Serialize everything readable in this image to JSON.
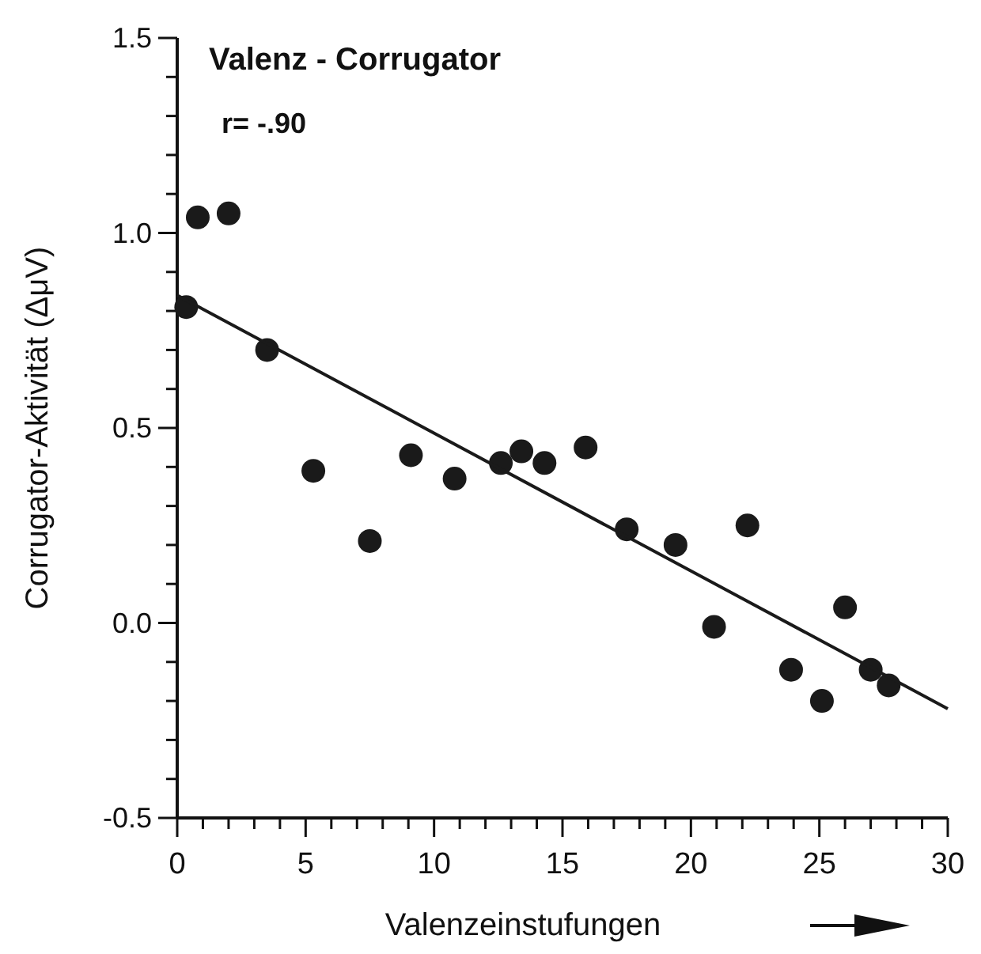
{
  "chart_data": {
    "type": "scatter",
    "title": "Valenz - Corrugator",
    "xlabel": "Valenzeinstufungen",
    "ylabel": "Corrugator-Aktivität (ΔμV)",
    "annotations": [
      "r= -.90"
    ],
    "xlim": [
      0,
      30
    ],
    "ylim": [
      -0.5,
      1.5
    ],
    "xticks": [
      0,
      {
        "value": 1,
        "label": null
      },
      {
        "value": 2,
        "label": null
      },
      {
        "value": 3,
        "label": null
      },
      {
        "value": 4,
        "label": null
      },
      5,
      {
        "value": 6,
        "label": null
      },
      {
        "value": 7,
        "label": null
      },
      {
        "value": 8,
        "label": null
      },
      {
        "value": 9,
        "label": null
      },
      10,
      {
        "value": 11,
        "label": null
      },
      {
        "value": 12,
        "label": null
      },
      {
        "value": 13,
        "label": null
      },
      {
        "value": 14,
        "label": null
      },
      15,
      {
        "value": 16,
        "label": null
      },
      {
        "value": 17,
        "label": null
      },
      {
        "value": 18,
        "label": null
      },
      {
        "value": 19,
        "label": null
      },
      20,
      {
        "value": 21,
        "label": null
      },
      {
        "value": 22,
        "label": null
      },
      {
        "value": 23,
        "label": null
      },
      {
        "value": 24,
        "label": null
      },
      25,
      {
        "value": 26,
        "label": null
      },
      {
        "value": 27,
        "label": null
      },
      {
        "value": 28,
        "label": null
      },
      {
        "value": 29,
        "label": null
      },
      30
    ],
    "yticks": [
      -0.5,
      {
        "value": -0.4,
        "label": null
      },
      {
        "value": -0.3,
        "label": null
      },
      {
        "value": -0.2,
        "label": null
      },
      {
        "value": -0.1,
        "label": null
      },
      {
        "value": 0,
        "label": "0.0"
      },
      {
        "value": 0.1,
        "label": null
      },
      {
        "value": 0.2,
        "label": null
      },
      {
        "value": 0.3,
        "label": null
      },
      {
        "value": 0.4,
        "label": null
      },
      0.5,
      {
        "value": 0.6,
        "label": null
      },
      {
        "value": 0.7,
        "label": null
      },
      {
        "value": 0.8,
        "label": null
      },
      {
        "value": 0.9,
        "label": null
      },
      {
        "value": 1,
        "label": "1.0"
      },
      {
        "value": 1.1,
        "label": null
      },
      {
        "value": 1.2,
        "label": null
      },
      {
        "value": 1.3,
        "label": null
      },
      {
        "value": 1.4,
        "label": null
      },
      1.5
    ],
    "grid": false,
    "series": [
      {
        "type": "scatter",
        "color": "#1a1a1a",
        "marker": "circle",
        "x": [
          0.35,
          0.8,
          2.0,
          3.5,
          5.3,
          7.5,
          9.1,
          10.8,
          12.6,
          13.4,
          14.3,
          15.9,
          17.5,
          19.4,
          20.9,
          22.2,
          23.9,
          25.1,
          26.0,
          27.0,
          27.7
        ],
        "values": [
          0.81,
          1.04,
          1.05,
          0.7,
          0.39,
          0.21,
          0.43,
          0.37,
          0.41,
          0.44,
          0.41,
          0.45,
          0.24,
          0.2,
          -0.01,
          0.25,
          -0.12,
          -0.2,
          0.04,
          -0.12,
          -0.16
        ]
      },
      {
        "type": "line",
        "color": "#1a1a1a",
        "marker": "none",
        "line_style": "solid",
        "x": [
          0,
          30
        ],
        "values": [
          0.84,
          -0.22
        ]
      }
    ]
  }
}
